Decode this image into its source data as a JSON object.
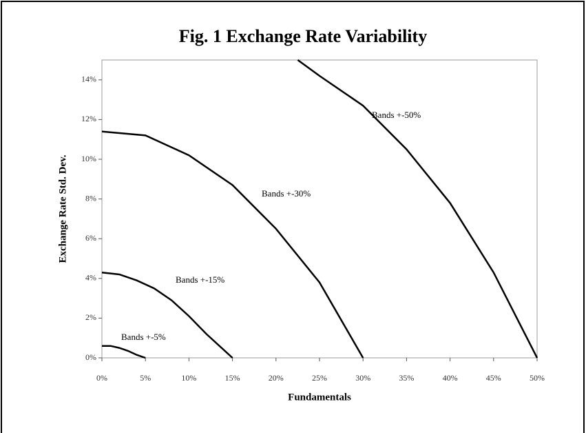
{
  "chart_data": {
    "type": "line",
    "title": "Fig. 1 Exchange Rate Variability",
    "x_label": "Fundamentals",
    "y_label": "Exchange Rate Std. Dev.",
    "xlim": [
      0,
      50
    ],
    "ylim": [
      0,
      15
    ],
    "xticks": [
      {
        "value": 0,
        "label": "0%"
      },
      {
        "value": 5,
        "label": "5%"
      },
      {
        "value": 10,
        "label": "10%"
      },
      {
        "value": 15,
        "label": "15%"
      },
      {
        "value": 20,
        "label": "20%"
      },
      {
        "value": 25,
        "label": "25%"
      },
      {
        "value": 30,
        "label": "30%"
      },
      {
        "value": 35,
        "label": "35%"
      },
      {
        "value": 40,
        "label": "40%"
      },
      {
        "value": 45,
        "label": "45%"
      },
      {
        "value": 50,
        "label": "50%"
      }
    ],
    "yticks": [
      {
        "value": 0,
        "label": "0%"
      },
      {
        "value": 2,
        "label": "2%"
      },
      {
        "value": 4,
        "label": "4%"
      },
      {
        "value": 6,
        "label": "6%"
      },
      {
        "value": 8,
        "label": "8%"
      },
      {
        "value": 10,
        "label": "10%"
      },
      {
        "value": 12,
        "label": "12%"
      },
      {
        "value": 14,
        "label": "14%"
      }
    ],
    "series": [
      {
        "name": "Bands +-5%",
        "color": "#000000",
        "x": [
          0,
          1,
          2,
          3,
          4,
          5
        ],
        "values": [
          0.6,
          0.6,
          0.5,
          0.35,
          0.15,
          0
        ]
      },
      {
        "name": "Bands +-15%",
        "color": "#000000",
        "x": [
          0,
          2,
          4,
          6,
          8,
          10,
          12,
          15
        ],
        "values": [
          4.3,
          4.2,
          3.9,
          3.5,
          2.9,
          2.1,
          1.2,
          0
        ]
      },
      {
        "name": "Bands +-30%",
        "color": "#000000",
        "x": [
          0,
          5,
          10,
          15,
          20,
          25,
          30
        ],
        "values": [
          11.4,
          11.2,
          10.2,
          8.7,
          6.5,
          3.8,
          0
        ]
      },
      {
        "name": "Bands +-50%",
        "color": "#000000",
        "x": [
          22.5,
          25,
          30,
          35,
          40,
          45,
          50
        ],
        "values": [
          15,
          14.2,
          12.7,
          10.5,
          7.8,
          4.3,
          0
        ]
      }
    ]
  }
}
